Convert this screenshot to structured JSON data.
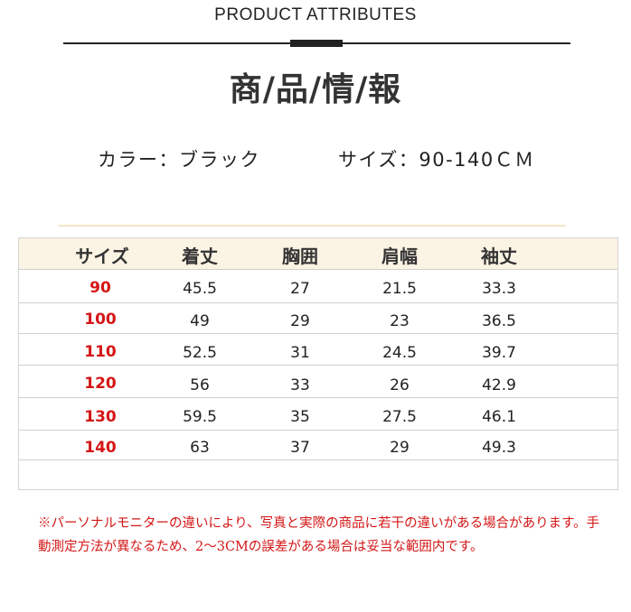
{
  "header": {
    "label": "PRODUCT ATTRIBUTES",
    "title": "商/品/情/報"
  },
  "specs": {
    "color": "カラー：ブラック",
    "size": "サイズ：90-140ＣＭ"
  },
  "size_table": {
    "columns": [
      "サイズ",
      "着丈",
      "胸囲",
      "肩幅",
      "袖丈"
    ],
    "rows": [
      [
        "90",
        "45.5",
        "27",
        "21.5",
        "33.3"
      ],
      [
        "100",
        "49",
        "29",
        "23",
        "36.5"
      ],
      [
        "110",
        "52.5",
        "31",
        "24.5",
        "39.7"
      ],
      [
        "120",
        "56",
        "33",
        "26",
        "42.9"
      ],
      [
        "130",
        "59.5",
        "35",
        "27.5",
        "46.1"
      ],
      [
        "140",
        "63",
        "37",
        "29",
        "49.3"
      ]
    ]
  },
  "note": "※パーソナルモニターの違いにより、写真と実際の商品に若干の違いがある場合があります。手動測定方法が異なるため、2〜3CMの誤差がある場合は妥当な範囲内です。",
  "colors": {
    "accent_red": "#d41616",
    "header_bg": "#fbf3e4",
    "gold_rule": "#f3e6c4"
  }
}
